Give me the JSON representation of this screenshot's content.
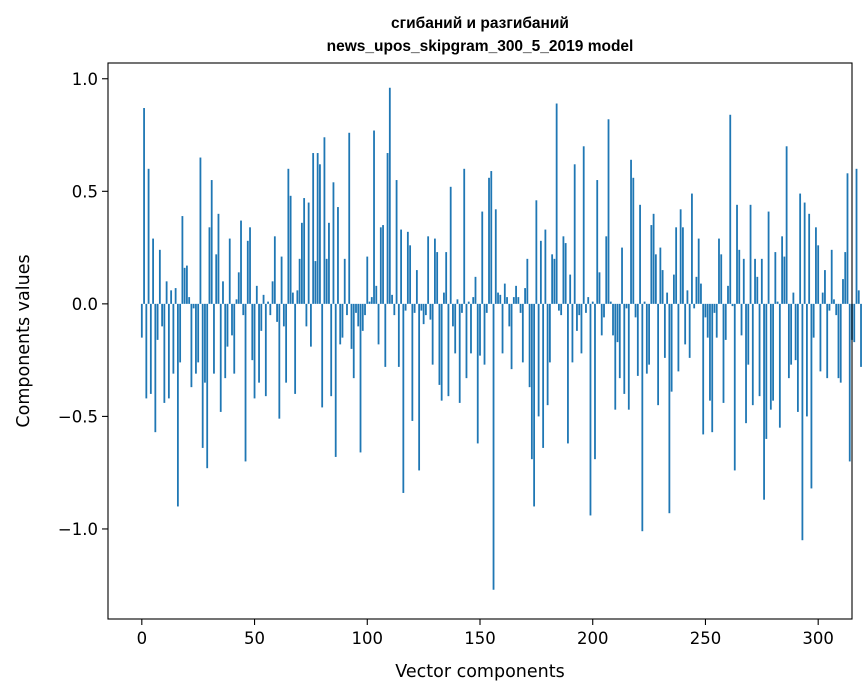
{
  "chart_data": {
    "type": "bar",
    "title_lines": [
      "сгибаний и разгибаний",
      "news_upos_skipgram_300_5_2019 model"
    ],
    "xlabel": "Vector components",
    "ylabel": "Components values",
    "xlim": [
      -15,
      315
    ],
    "ylim": [
      -1.4,
      1.07
    ],
    "xticks": [
      0,
      50,
      100,
      150,
      200,
      250,
      300
    ],
    "xtick_labels": [
      "0",
      "50",
      "100",
      "150",
      "200",
      "250",
      "300"
    ],
    "yticks": [
      1.0,
      0.5,
      0.0,
      -0.5,
      -1.0
    ],
    "ytick_labels": [
      "1.0",
      "0.5",
      "0.0",
      "−0.5",
      "−1.0"
    ],
    "color": "#1f77b4",
    "grid": false,
    "values": [
      -0.15,
      0.87,
      -0.42,
      0.6,
      -0.4,
      0.29,
      -0.57,
      -0.16,
      0.24,
      -0.1,
      -0.44,
      0.1,
      -0.42,
      0.06,
      -0.31,
      0.07,
      -0.9,
      -0.26,
      0.39,
      0.16,
      0.17,
      0.03,
      -0.37,
      -0.02,
      -0.31,
      -0.26,
      0.65,
      -0.64,
      -0.35,
      -0.73,
      0.34,
      0.55,
      -0.31,
      0.22,
      0.4,
      -0.48,
      0.1,
      -0.33,
      -0.19,
      0.29,
      -0.14,
      -0.31,
      0.02,
      0.14,
      0.37,
      -0.05,
      -0.7,
      0.28,
      0.34,
      -0.25,
      -0.42,
      0.08,
      -0.35,
      -0.12,
      0.04,
      -0.41,
      0.01,
      -0.05,
      0.1,
      0.3,
      -0.08,
      -0.51,
      0.21,
      -0.1,
      -0.35,
      0.6,
      0.48,
      0.05,
      -0.4,
      0.06,
      0.2,
      0.36,
      0.47,
      -0.1,
      0.45,
      -0.19,
      0.67,
      0.19,
      0.67,
      0.62,
      -0.46,
      0.74,
      0.2,
      0.36,
      -0.41,
      0.54,
      -0.68,
      0.43,
      -0.18,
      -0.15,
      0.2,
      -0.05,
      0.76,
      -0.2,
      -0.33,
      -0.04,
      -0.1,
      -0.66,
      -0.12,
      -0.05,
      0.21,
      0.01,
      0.03,
      0.77,
      0.08,
      -0.18,
      0.34,
      0.35,
      -0.28,
      0.67,
      0.96,
      0.04,
      -0.05,
      0.55,
      -0.28,
      0.33,
      -0.84,
      -0.03,
      0.32,
      0.26,
      -0.52,
      -0.04,
      0.15,
      -0.74,
      -0.03,
      -0.09,
      -0.05,
      0.3,
      -0.07,
      -0.27,
      0.29,
      0.23,
      -0.36,
      -0.43,
      0.05,
      0.23,
      -0.41,
      0.52,
      -0.1,
      -0.22,
      0.02,
      -0.44,
      -0.04,
      0.6,
      -0.33,
      0.01,
      -0.22,
      0.03,
      0.12,
      -0.62,
      -0.23,
      0.41,
      -0.27,
      -0.04,
      0.56,
      0.59,
      -1.27,
      0.42,
      0.05,
      0.04,
      -0.22,
      0.09,
      0.03,
      -0.1,
      -0.29,
      0.03,
      0.08,
      0.03,
      -0.04,
      -0.26,
      0.07,
      0.2,
      -0.37,
      -0.69,
      -0.9,
      0.46,
      -0.5,
      0.28,
      -0.64,
      0.33,
      -0.45,
      -0.26,
      0.22,
      0.2,
      0.89,
      -0.03,
      -0.05,
      0.3,
      0.27,
      -0.62,
      0.13,
      -0.26,
      0.62,
      -0.12,
      -0.05,
      -0.22,
      0.7,
      -0.04,
      0.03,
      -0.94,
      0.01,
      -0.69,
      0.55,
      0.14,
      -0.14,
      -0.06,
      0.3,
      0.82,
      0.01,
      -0.14,
      -0.47,
      -0.17,
      -0.33,
      0.25,
      -0.4,
      -0.02,
      -0.47,
      0.64,
      0.56,
      -0.06,
      -0.32,
      0.44,
      -1.01,
      0.01,
      -0.31,
      -0.27,
      0.35,
      0.4,
      0.22,
      -0.45,
      0.25,
      0.15,
      -0.24,
      0.05,
      -0.93,
      -0.39,
      0.13,
      0.34,
      -0.3,
      0.42,
      0.34,
      -0.18,
      0.06,
      -0.24,
      0.49,
      -0.02,
      0.12,
      0.29,
      0.09,
      -0.58,
      -0.06,
      -0.15,
      -0.43,
      -0.57,
      -0.04,
      -0.15,
      0.29,
      0.22,
      -0.44,
      -0.16,
      0.08,
      0.84,
      -0.01,
      -0.74,
      0.44,
      0.24,
      -0.14,
      0.2,
      -0.53,
      -0.27,
      0.44,
      -0.45,
      0.2,
      0.12,
      -0.41,
      0.2,
      -0.87,
      -0.6,
      0.41,
      -0.47,
      -0.43,
      0.23,
      0.01,
      -0.55,
      0.3,
      0.21,
      0.7,
      -0.33,
      -0.27,
      0.05,
      -0.25,
      -0.48,
      0.49,
      -1.05,
      0.45,
      -0.5,
      0.4,
      -0.82,
      -0.15,
      0.34,
      0.26,
      -0.3,
      0.05,
      0.15,
      -0.33,
      -0.03,
      0.24,
      0.02,
      -0.05,
      -0.33,
      -0.35,
      0.11,
      0.23,
      0.58,
      -0.7,
      -0.16,
      -0.17,
      0.6,
      0.06,
      -0.28
    ]
  }
}
